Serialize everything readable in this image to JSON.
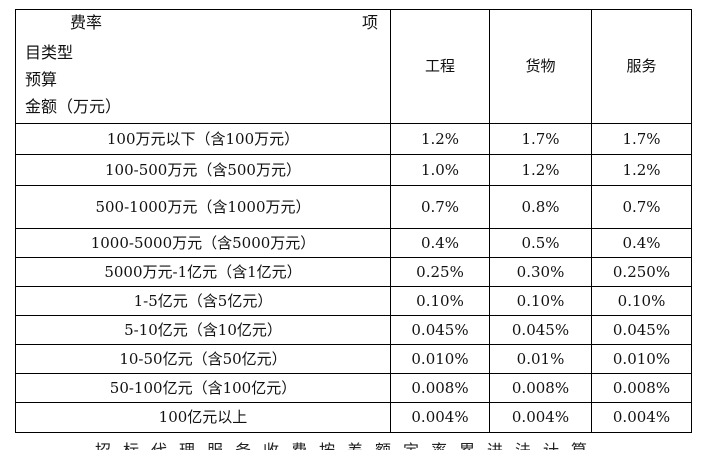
{
  "header": {
    "fee_rate": "费率",
    "item_part1": "项",
    "item_part2": "目类型",
    "budget_part1": "预算",
    "budget_part2": "金额（万元）",
    "col_engineering": "工程",
    "col_goods": "货物",
    "col_services": "服务"
  },
  "rows": [
    {
      "range": "100万元以下（含100万元）",
      "engineering": "1.2%",
      "goods": "1.7%",
      "services": "1.7%"
    },
    {
      "range": "100-500万元（含500万元）",
      "engineering": "1.0%",
      "goods": "1.2%",
      "services": "1.2%"
    },
    {
      "range": "500-1000万元（含1000万元）",
      "engineering": "0.7%",
      "goods": "0.8%",
      "services": "0.7%"
    },
    {
      "range": "1000-5000万元（含5000万元）",
      "engineering": "0.4%",
      "goods": "0.5%",
      "services": "0.4%"
    },
    {
      "range": "5000万元-1亿元（含1亿元）",
      "engineering": "0.25%",
      "goods": "0.30%",
      "services": "0.250%"
    },
    {
      "range": "1-5亿元（含5亿元）",
      "engineering": "0.10%",
      "goods": "0.10%",
      "services": "0.10%"
    },
    {
      "range": "5-10亿元（含10亿元）",
      "engineering": "0.045%",
      "goods": "0.045%",
      "services": "0.045%"
    },
    {
      "range": "10-50亿元（含50亿元）",
      "engineering": "0.010%",
      "goods": "0.01%",
      "services": "0.010%"
    },
    {
      "range": "50-100亿元（含100亿元）",
      "engineering": "0.008%",
      "goods": "0.008%",
      "services": "0.008%"
    },
    {
      "range": "100亿元以上",
      "engineering": "0.004%",
      "goods": "0.004%",
      "services": "0.004%"
    }
  ],
  "bottom_fragment": "招标代理服务收费按差额定率累进法计算"
}
